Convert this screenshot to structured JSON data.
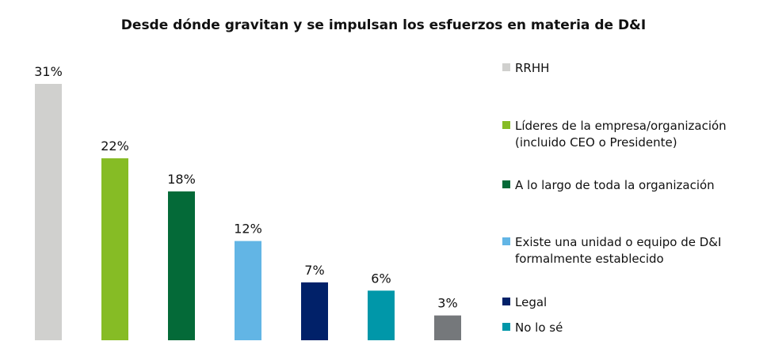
{
  "chart_data": {
    "type": "bar",
    "title": "Desde dónde gravitan y se impulsan los esfuerzos en materia de D&I",
    "xlabel": "",
    "ylabel": "",
    "ylim": [
      0,
      31
    ],
    "grid": false,
    "legend_position": "right",
    "categories": [
      "RRHH",
      "Líderes de la empresa/organización (incluido CEO o Presidente)",
      "A lo largo de toda la organización",
      "Existe una unidad o equipo de D&I formalmente establecido",
      "Legal",
      "No lo sé",
      ""
    ],
    "values": [
      31,
      22,
      18,
      12,
      7,
      6,
      3
    ],
    "value_labels": [
      "31%",
      "22%",
      "18%",
      "12%",
      "7%",
      "6%",
      "3%"
    ],
    "colors": [
      "#d0d0ce",
      "#86bc25",
      "#046a38",
      "#62b5e5",
      "#012169",
      "#0097a9",
      "#75787b"
    ],
    "legend": [
      {
        "label": "RRHH",
        "color": "#d0d0ce"
      },
      {
        "label": "Líderes de la empresa/organización (incluido CEO o Presidente)",
        "color": "#86bc25"
      },
      {
        "label": "A lo largo de toda la organización",
        "color": "#046a38"
      },
      {
        "label": "Existe una unidad o equipo de D&I formalmente establecido",
        "color": "#62b5e5"
      },
      {
        "label": "Legal",
        "color": "#012169"
      },
      {
        "label": "No lo sé",
        "color": "#0097a9"
      }
    ]
  }
}
